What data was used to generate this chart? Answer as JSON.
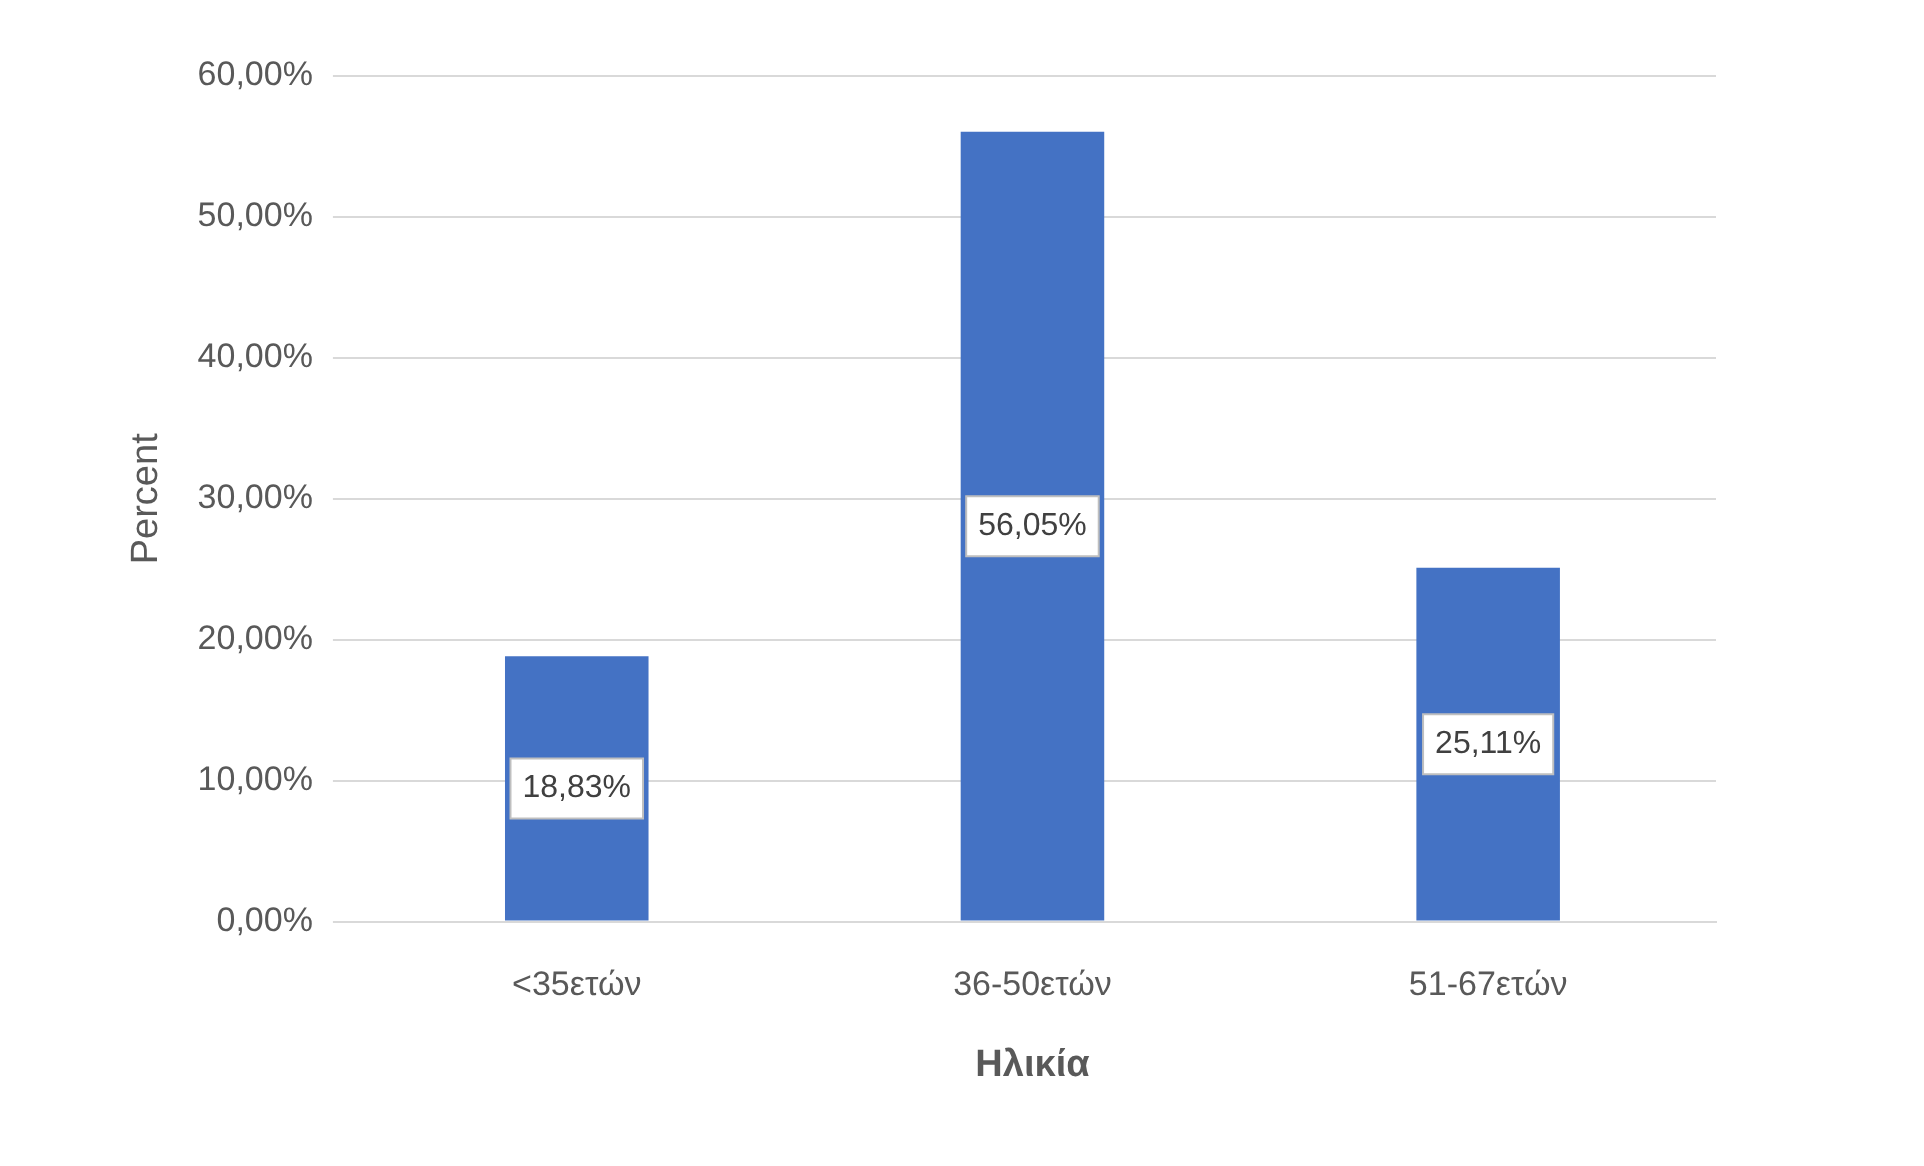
{
  "chart_data": {
    "type": "bar",
    "xlabel": "Ηλικία",
    "ylabel": "Percent",
    "categories": [
      "<35ετών",
      "36-50ετών",
      "51-67ετών"
    ],
    "values": [
      18.83,
      56.05,
      25.11
    ],
    "value_labels": [
      "18,83%",
      "56,05%",
      "25,11%"
    ],
    "color": "#4472c4",
    "ylim": [
      0,
      60
    ],
    "yticks": [
      {
        "value": 0,
        "label": "0,00%"
      },
      {
        "value": 10,
        "label": "10,00%"
      },
      {
        "value": 20,
        "label": "20,00%"
      },
      {
        "value": 30,
        "label": "30,00%"
      },
      {
        "value": 40,
        "label": "40,00%"
      },
      {
        "value": 50,
        "label": "50,00%"
      },
      {
        "value": 60,
        "label": "60,00%"
      }
    ],
    "grid": "y",
    "legend": false
  }
}
